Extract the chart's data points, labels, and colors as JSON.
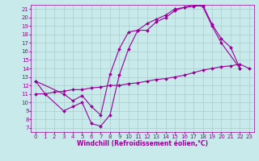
{
  "title": "",
  "xlabel": "Windchill (Refroidissement éolien,°C)",
  "bg_color": "#c8eaea",
  "line_color": "#990099",
  "grid_color": "#aacccc",
  "xlim": [
    -0.5,
    23.5
  ],
  "ylim": [
    6.5,
    21.5
  ],
  "xticks": [
    0,
    1,
    2,
    3,
    4,
    5,
    6,
    7,
    8,
    9,
    10,
    11,
    12,
    13,
    14,
    15,
    16,
    17,
    18,
    19,
    20,
    21,
    22,
    23
  ],
  "yticks": [
    7,
    8,
    9,
    10,
    11,
    12,
    13,
    14,
    15,
    16,
    17,
    18,
    19,
    20,
    21
  ],
  "line1_x": [
    0,
    1,
    3,
    4,
    5,
    6,
    7,
    8,
    9,
    10,
    11,
    12,
    13,
    14,
    15,
    16,
    17,
    18,
    19,
    20,
    21,
    22
  ],
  "line1_y": [
    12.5,
    11.0,
    9.0,
    9.5,
    10.0,
    7.5,
    7.2,
    8.5,
    13.2,
    16.3,
    18.5,
    18.5,
    19.5,
    20.0,
    20.8,
    21.2,
    21.3,
    21.5,
    19.2,
    17.5,
    16.5,
    14.0
  ],
  "line2_x": [
    0,
    1,
    2,
    3,
    4,
    5,
    6,
    7,
    8,
    9,
    10,
    11,
    12,
    13,
    14,
    15,
    16,
    17,
    18,
    19,
    20,
    21,
    22,
    23
  ],
  "line2_y": [
    11.0,
    11.0,
    11.2,
    11.3,
    11.5,
    11.5,
    11.7,
    11.8,
    12.0,
    12.0,
    12.2,
    12.3,
    12.5,
    12.7,
    12.8,
    13.0,
    13.2,
    13.5,
    13.8,
    14.0,
    14.2,
    14.3,
    14.5,
    14.0
  ],
  "line3_x": [
    0,
    3,
    4,
    5,
    6,
    7,
    8,
    9,
    10,
    11,
    12,
    13,
    14,
    15,
    16,
    17,
    18,
    19,
    20,
    22
  ],
  "line3_y": [
    12.5,
    11.0,
    10.2,
    10.8,
    9.5,
    8.5,
    13.3,
    16.3,
    18.3,
    18.5,
    19.3,
    19.8,
    20.3,
    21.0,
    21.2,
    21.5,
    21.3,
    19.0,
    17.0,
    14.0
  ],
  "tick_fontsize": 5,
  "xlabel_fontsize": 5.5,
  "marker": "D",
  "markersize": 2,
  "linewidth": 0.8
}
